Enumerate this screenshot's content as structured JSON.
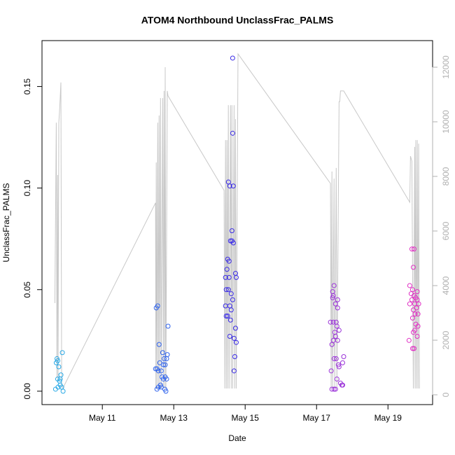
{
  "chart_data": {
    "type": "scatter",
    "title": "ATOM4 Northbound UnclassFrac_PALMS",
    "xlabel": "Date",
    "ylabel": "UnclassFrac_PALMS",
    "xlim": [
      9.31,
      20.25
    ],
    "ylim": [
      -0.0066,
      0.1726
    ],
    "y2lim": [
      -359,
      12974
    ],
    "xticks": [
      {
        "value": 11,
        "label": "May 11"
      },
      {
        "value": 13,
        "label": "May 13"
      },
      {
        "value": 15,
        "label": "May 15"
      },
      {
        "value": 17,
        "label": "May 17"
      },
      {
        "value": 19,
        "label": "May 19"
      }
    ],
    "yticks": [
      {
        "value": 0,
        "label": "0.00"
      },
      {
        "value": 0.05,
        "label": "0.05"
      },
      {
        "value": 0.1,
        "label": "0.10"
      },
      {
        "value": 0.15,
        "label": "0.15"
      }
    ],
    "y2ticks": [
      0,
      2000,
      4000,
      6000,
      8000,
      10000,
      12000
    ],
    "y2color": "#b0b0b0",
    "series": [
      {
        "type": "line",
        "axis": "y2",
        "color": "#c8c8c8",
        "x": [
          9.67,
          9.71,
          9.73,
          9.75,
          9.76,
          9.78,
          9.8,
          9.82,
          9.84,
          9.86,
          9.9,
          9.94,
          12.49,
          12.5,
          12.51,
          12.53,
          12.55,
          12.57,
          12.59,
          12.61,
          12.63,
          12.65,
          12.69,
          12.71,
          12.73,
          12.75,
          12.76,
          12.78,
          12.82,
          12.84,
          14.41,
          14.43,
          14.45,
          14.47,
          14.49,
          14.51,
          14.53,
          14.55,
          14.59,
          14.61,
          14.63,
          14.65,
          14.69,
          14.71,
          14.73,
          14.75,
          14.8,
          17.39,
          17.41,
          17.43,
          17.45,
          17.49,
          17.51,
          17.55,
          17.57,
          17.63,
          17.65,
          17.67,
          17.76,
          19.61,
          19.63,
          19.67,
          19.71,
          19.75,
          19.76,
          19.78,
          19.8,
          19.82,
          19.84,
          19.86,
          19.88
        ],
        "values": [
          3360,
          9970,
          620,
          8050,
          490,
          9970,
          10360,
          10870,
          11440,
          360,
          230,
          360,
          7030,
          230,
          8510,
          230,
          9970,
          230,
          10230,
          230,
          10870,
          230,
          10870,
          230,
          11130,
          230,
          12000,
          230,
          11130,
          10950,
          7490,
          230,
          9330,
          230,
          9330,
          230,
          10610,
          230,
          10610,
          230,
          10610,
          230,
          10610,
          230,
          10100,
          230,
          12490,
          7740,
          230,
          8180,
          230,
          7920,
          230,
          8310,
          230,
          10740,
          10740,
          11130,
          11130,
          7050,
          8740,
          8560,
          230,
          9080,
          230,
          9330,
          230,
          9330,
          230,
          9200,
          230
        ]
      },
      {
        "type": "scatter",
        "color": "#29a9e6",
        "x": [
          9.69,
          9.71,
          9.73,
          9.75,
          9.76,
          9.78,
          9.8,
          9.82,
          9.84,
          9.86,
          9.88,
          9.9,
          9.75,
          9.82
        ],
        "values": [
          0.001,
          0.014,
          0.016,
          0.015,
          0.002,
          0.012,
          0.005,
          0.003,
          0.008,
          0.002,
          0.019,
          0.0,
          0.006,
          0.006
        ]
      },
      {
        "type": "scatter",
        "color": "#2f63ec",
        "x": [
          12.51,
          12.55,
          12.49,
          12.53,
          12.57,
          12.61,
          12.59,
          12.63,
          12.65,
          12.67,
          12.69,
          12.71,
          12.73,
          12.75,
          12.76,
          12.78,
          12.8,
          12.82,
          12.84,
          12.53,
          12.57,
          12.65,
          12.71,
          12.76,
          12.8
        ],
        "values": [
          0.041,
          0.042,
          0.011,
          0.011,
          0.01,
          0.014,
          0.023,
          0.003,
          0.01,
          0.007,
          0.019,
          0.013,
          0.016,
          0.001,
          0.007,
          0.0,
          0.016,
          0.018,
          0.032,
          0.001,
          0.002,
          0.002,
          0.006,
          0.013,
          0.006
        ]
      },
      {
        "type": "scatter",
        "color": "#3a2be6",
        "x": [
          14.65,
          14.65,
          14.53,
          14.57,
          14.67,
          14.63,
          14.59,
          14.63,
          14.67,
          14.51,
          14.55,
          14.49,
          14.73,
          14.75,
          14.45,
          14.55,
          14.47,
          14.53,
          14.61,
          14.45,
          14.57,
          14.47,
          14.51,
          14.59,
          14.61,
          14.73,
          14.57,
          14.69,
          14.75,
          14.71,
          14.69,
          14.65
        ],
        "values": [
          0.164,
          0.127,
          0.103,
          0.101,
          0.101,
          0.079,
          0.074,
          0.074,
          0.073,
          0.065,
          0.064,
          0.06,
          0.058,
          0.056,
          0.056,
          0.056,
          0.05,
          0.05,
          0.048,
          0.042,
          0.042,
          0.037,
          0.037,
          0.035,
          0.04,
          0.031,
          0.027,
          0.026,
          0.024,
          0.017,
          0.01,
          0.045
        ]
      },
      {
        "type": "scatter",
        "color": "#9a32d8",
        "x": [
          17.45,
          17.49,
          17.47,
          17.45,
          17.53,
          17.59,
          17.59,
          17.39,
          17.47,
          17.55,
          17.57,
          17.63,
          17.51,
          17.43,
          17.47,
          17.53,
          17.59,
          17.49,
          17.55,
          17.76,
          17.73,
          17.61,
          17.63,
          17.41,
          17.57,
          17.67,
          17.71,
          17.73,
          17.43,
          17.49,
          17.53
        ],
        "values": [
          0.049,
          0.052,
          0.047,
          0.046,
          0.043,
          0.045,
          0.041,
          0.034,
          0.034,
          0.034,
          0.032,
          0.03,
          0.029,
          0.023,
          0.025,
          0.027,
          0.025,
          0.016,
          0.016,
          0.017,
          0.014,
          0.013,
          0.012,
          0.01,
          0.006,
          0.004,
          0.003,
          0.003,
          0.001,
          0.001,
          0.001
        ]
      },
      {
        "type": "scatter",
        "color": "#e02fc4",
        "x": [
          19.67,
          19.73,
          19.71,
          19.61,
          19.69,
          19.82,
          19.65,
          19.73,
          19.78,
          19.67,
          19.82,
          19.86,
          19.61,
          19.75,
          19.8,
          19.71,
          19.76,
          19.84,
          19.69,
          19.78,
          19.84,
          19.75,
          19.71,
          19.82,
          19.59,
          19.73,
          19.69
        ],
        "values": [
          0.07,
          0.07,
          0.061,
          0.052,
          0.05,
          0.049,
          0.048,
          0.047,
          0.046,
          0.045,
          0.045,
          0.043,
          0.043,
          0.043,
          0.041,
          0.04,
          0.038,
          0.038,
          0.036,
          0.033,
          0.032,
          0.03,
          0.029,
          0.027,
          0.025,
          0.021,
          0.021
        ]
      }
    ]
  }
}
